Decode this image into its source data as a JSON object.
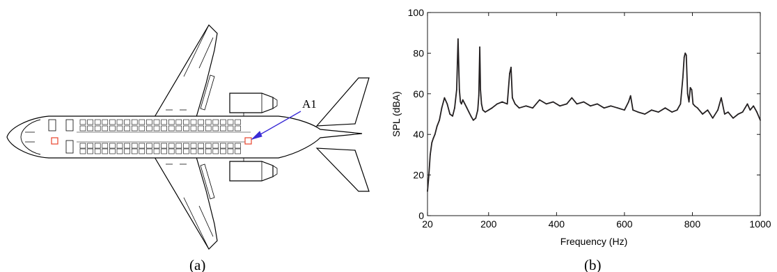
{
  "panel_a": {
    "caption": "(a)",
    "marker_label": "A1",
    "colors": {
      "marker": "#e8432b",
      "arrow": "#3b2cd6",
      "outline": "#000000"
    }
  },
  "panel_b": {
    "caption": "(b)"
  },
  "chart_data": {
    "type": "line",
    "title": "",
    "xlabel": "Frequency (Hz)",
    "ylabel": "SPL (dBA)",
    "xlim": [
      20,
      1000
    ],
    "ylim": [
      0,
      100
    ],
    "xticks": [
      20,
      200,
      400,
      600,
      800,
      1000
    ],
    "yticks": [
      0,
      20,
      40,
      60,
      80,
      100
    ],
    "grid": false,
    "line_color": "#231f20",
    "series": [
      {
        "x": [
          20,
          24,
          28,
          33,
          37,
          42,
          48,
          55,
          62,
          70,
          78,
          86,
          94,
          100,
          106,
          110,
          114,
          117,
          120,
          124,
          130,
          136,
          142,
          148,
          155,
          162,
          168,
          171,
          174,
          176,
          179,
          183,
          190,
          200,
          210,
          225,
          240,
          255,
          262,
          266,
          270,
          278,
          290,
          310,
          330,
          350,
          370,
          390,
          410,
          430,
          445,
          460,
          480,
          500,
          520,
          540,
          560,
          580,
          600,
          612,
          618,
          625,
          640,
          660,
          680,
          700,
          720,
          740,
          755,
          765,
          772,
          776,
          779,
          782,
          786,
          790,
          794,
          798,
          802,
          807,
          815,
          830,
          845,
          860,
          875,
          885,
          895,
          905,
          920,
          935,
          948,
          955,
          962,
          970,
          980,
          990,
          1000
        ],
        "values": [
          12,
          20,
          30,
          36,
          38,
          40,
          44,
          47,
          53,
          58,
          55,
          50,
          49,
          53,
          62,
          87,
          62,
          56,
          55,
          57,
          55,
          53,
          51,
          49,
          47,
          48,
          52,
          59,
          83,
          62,
          55,
          52,
          51,
          52,
          53,
          55,
          56,
          55,
          70,
          73,
          58,
          55,
          53,
          54,
          53,
          57,
          55,
          56,
          54,
          55,
          58,
          55,
          56,
          54,
          55,
          53,
          54,
          53,
          52,
          56,
          59,
          52,
          51,
          50,
          52,
          51,
          53,
          51,
          52,
          55,
          68,
          78,
          80,
          79,
          60,
          56,
          63,
          62,
          55,
          54,
          53,
          50,
          52,
          48,
          52,
          58,
          50,
          51,
          48,
          50,
          51,
          53,
          55,
          52,
          54,
          51,
          47
        ]
      }
    ]
  }
}
